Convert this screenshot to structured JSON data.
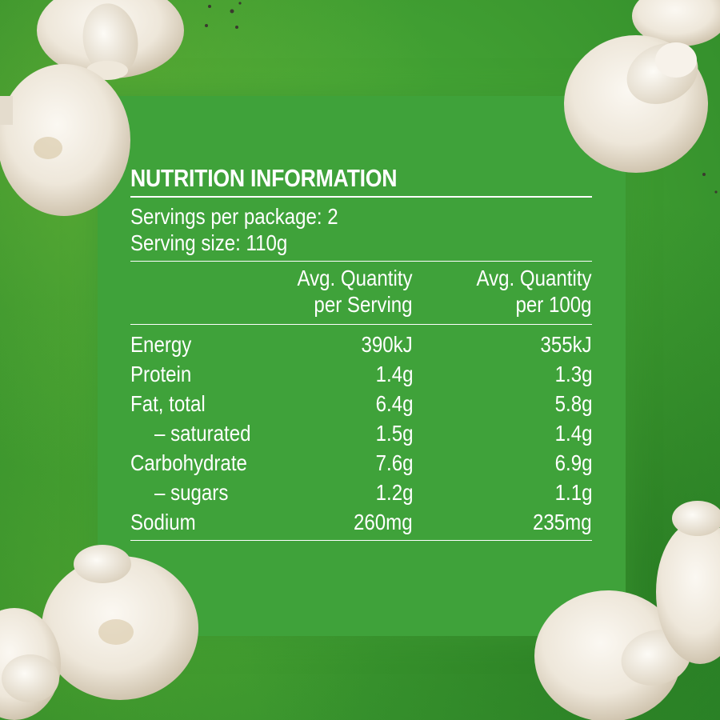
{
  "label": {
    "title": "NUTRITION INFORMATION",
    "servings_per_package": "Servings per package: 2",
    "serving_size": "Serving size: 110g",
    "columns": [
      {
        "line1": "Avg. Quantity",
        "line2": "per Serving"
      },
      {
        "line1": "Avg. Quantity",
        "line2": "per 100g"
      }
    ],
    "rows": [
      {
        "name": "Energy",
        "per_serving": "390kJ",
        "per_100g": "355kJ"
      },
      {
        "name": "Protein",
        "per_serving": "1.4g",
        "per_100g": "1.3g"
      },
      {
        "name": "Fat, total",
        "per_serving": "6.4g",
        "per_100g": "5.8g"
      },
      {
        "name": "– saturated",
        "per_serving": "1.5g",
        "per_100g": "1.4g"
      },
      {
        "name": "Carbohydrate",
        "per_serving": "7.6g",
        "per_100g": "6.9g"
      },
      {
        "name": "– sugars",
        "per_serving": "1.2g",
        "per_100g": "1.1g"
      },
      {
        "name": "Sodium",
        "per_serving": "260mg",
        "per_100g": "235mg"
      }
    ]
  },
  "colors": {
    "background": "#3d9a30",
    "panel": "#3fa23a",
    "text": "#ffffff",
    "mushroom": "#f2ede4"
  },
  "decor": {
    "icon": "mushroom-icon"
  }
}
